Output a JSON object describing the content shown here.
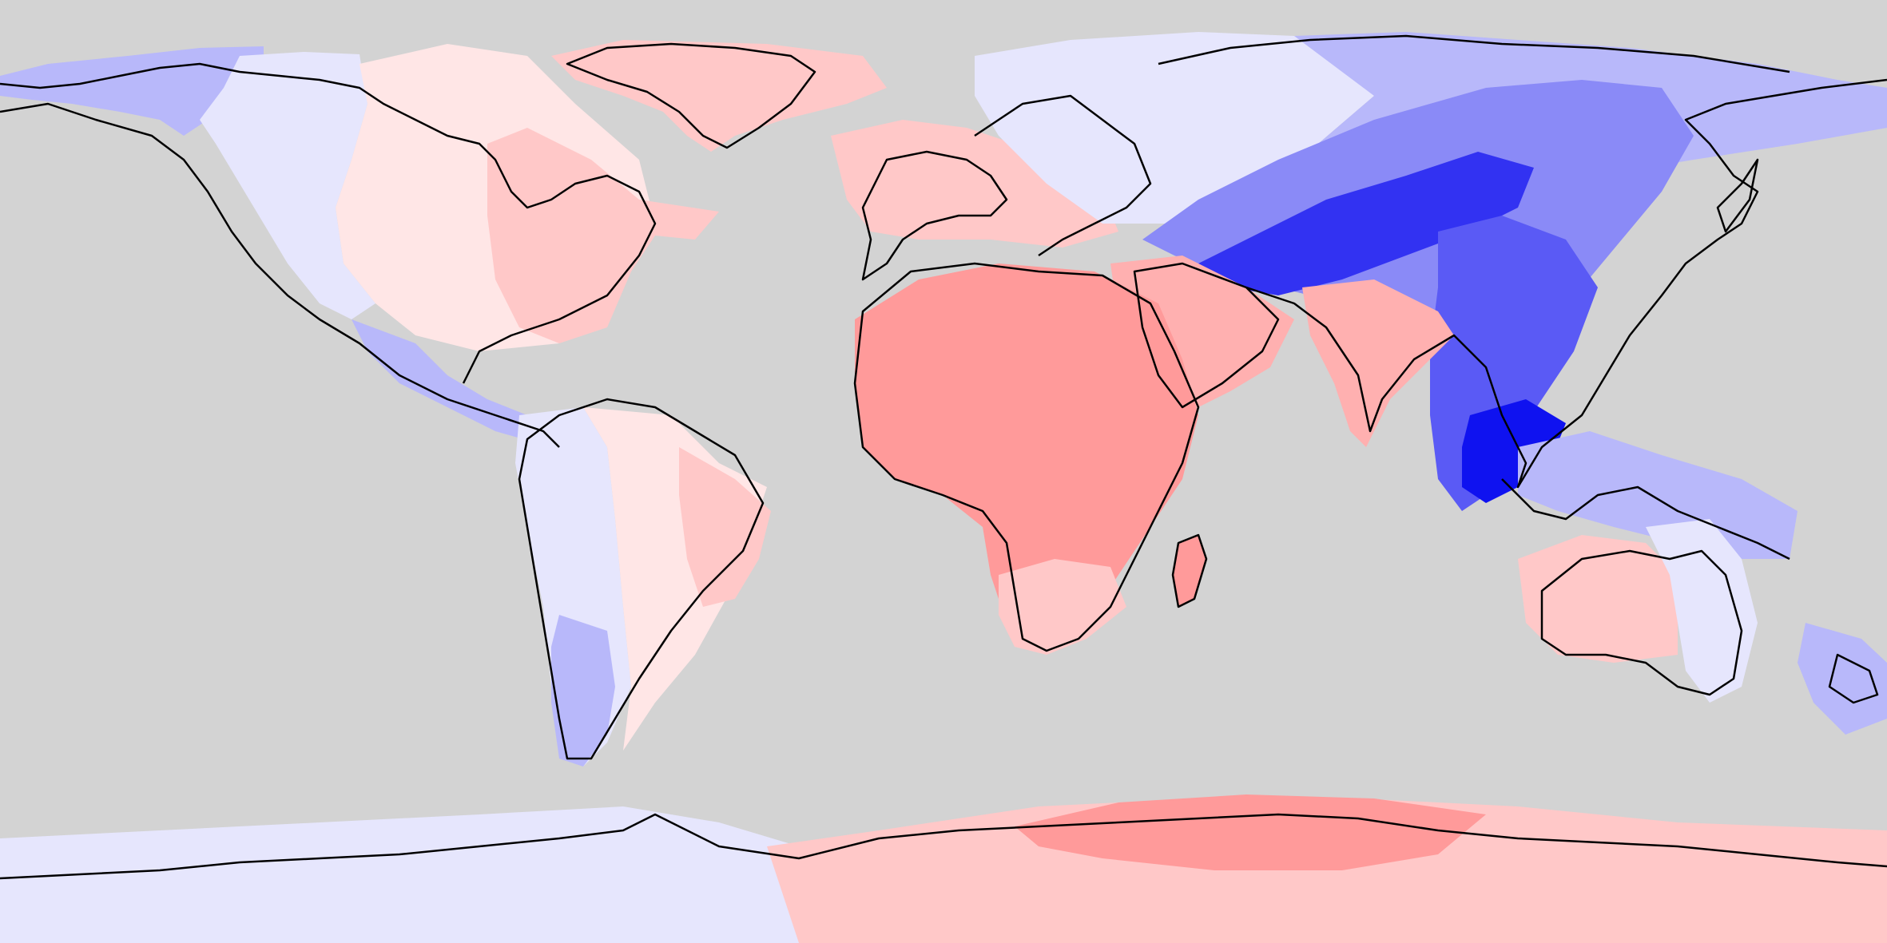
{
  "map": {
    "projection": "equirectangular",
    "background_color": "#d3d3d3",
    "coastline_color": "#000000",
    "legend": "none",
    "title": "",
    "color_scale": {
      "type": "diverging",
      "levels": [
        {
          "level": -5,
          "color": "#0f12f0"
        },
        {
          "level": -4,
          "color": "#3232f2"
        },
        {
          "level": -3,
          "color": "#5a5af5"
        },
        {
          "level": -2,
          "color": "#8a8af7"
        },
        {
          "level": -1,
          "color": "#b8b8fa"
        },
        {
          "level": 0,
          "color": "#e6e6fd"
        },
        {
          "level": 1,
          "color": "#ffe6e6"
        },
        {
          "level": 2,
          "color": "#ffc8c8"
        },
        {
          "level": 3,
          "color": "#ffb0b0"
        },
        {
          "level": 4,
          "color": "#ff9a9a"
        }
      ]
    },
    "regions": [
      {
        "name": "alaska-western-canada",
        "level": -1
      },
      {
        "name": "western-north-america",
        "level": 0
      },
      {
        "name": "eastern-north-america",
        "level": 1
      },
      {
        "name": "northeast-north-america",
        "level": 2
      },
      {
        "name": "greenland",
        "level": 2
      },
      {
        "name": "central-america",
        "level": -1
      },
      {
        "name": "andes",
        "level": 0
      },
      {
        "name": "amazon",
        "level": 1
      },
      {
        "name": "brazil-east",
        "level": 2
      },
      {
        "name": "patagonia",
        "level": -1
      },
      {
        "name": "europe-west",
        "level": 2
      },
      {
        "name": "scandinavia-russia-west",
        "level": 0
      },
      {
        "name": "siberia",
        "level": -1
      },
      {
        "name": "central-asia",
        "level": -2
      },
      {
        "name": "tibet-himalaya",
        "level": -4
      },
      {
        "name": "china-southeast-asia",
        "level": -3
      },
      {
        "name": "indochina-core",
        "level": -5
      },
      {
        "name": "india",
        "level": 3
      },
      {
        "name": "arabia",
        "level": 3
      },
      {
        "name": "africa",
        "level": 4
      },
      {
        "name": "southern-africa",
        "level": 2
      },
      {
        "name": "madagascar",
        "level": 4
      },
      {
        "name": "maritime-southeast-asia",
        "level": -1
      },
      {
        "name": "australia-west",
        "level": 2
      },
      {
        "name": "australia-east",
        "level": 0
      },
      {
        "name": "new-zealand",
        "level": -1
      },
      {
        "name": "antarctica-west",
        "level": 0
      },
      {
        "name": "antarctica-east",
        "level": 2
      },
      {
        "name": "antarctica-east-core",
        "level": 4
      }
    ]
  }
}
